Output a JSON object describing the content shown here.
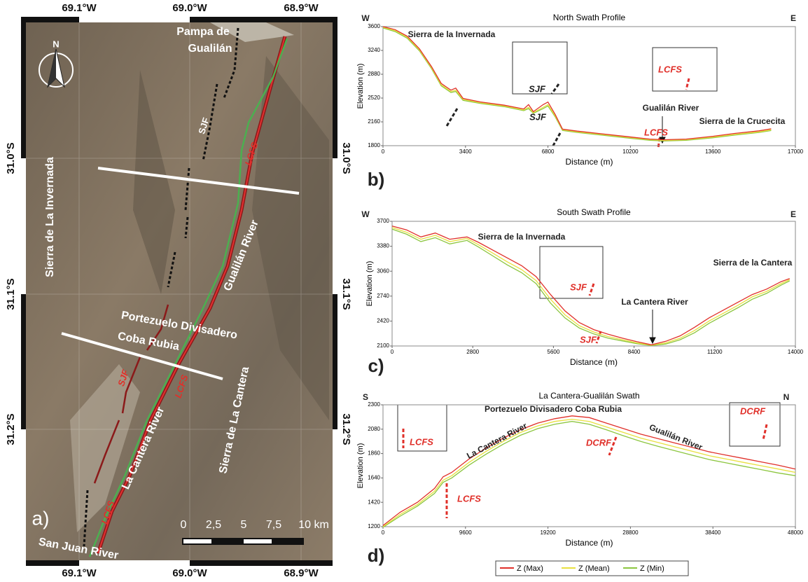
{
  "map": {
    "lon_labels": [
      "69.1°W",
      "69.0°W",
      "68.9°W"
    ],
    "lat_labels": [
      "31.0°S",
      "31.1°S",
      "31.2°S"
    ],
    "labels": [
      "Pampa de",
      "Gualilán",
      "SJF",
      "LCFS",
      "Sierra de La Invernada",
      "Gualilán River",
      "Portezuelo Divisadero",
      "Coba Rubia",
      "SJF",
      "LCFS",
      "La Cantera River",
      "Sierra de La Cantera",
      "LCFS",
      "San Juan River"
    ],
    "scale": [
      "0",
      "2,5",
      "5",
      "7,5",
      "10 km"
    ],
    "north": "N",
    "panel": "a)"
  },
  "chart_data": [
    {
      "type": "line",
      "title": "North Swath Profile",
      "x_label": "Distance (m)",
      "y_label": "Elevation (m)",
      "xlim": [
        0,
        17000
      ],
      "xticks": [
        0,
        3400,
        6800,
        10200,
        13600,
        17000
      ],
      "ylim": [
        1800,
        3600
      ],
      "yticks": [
        1800,
        2160,
        2520,
        2880,
        3240,
        3600
      ],
      "grid": false,
      "x": [
        0,
        500,
        1000,
        1500,
        2000,
        2400,
        2800,
        3000,
        3300,
        4000,
        5000,
        5800,
        6000,
        6200,
        6600,
        6800,
        7100,
        7400,
        8000,
        9000,
        10000,
        11000,
        11600,
        12500,
        13600,
        14500,
        15500,
        16000
      ],
      "series": [
        {
          "name": "Z (Max)",
          "color": "#e0302a",
          "values": [
            3600,
            3555,
            3455,
            3265,
            2995,
            2740,
            2640,
            2670,
            2515,
            2462,
            2412,
            2355,
            2420,
            2315,
            2420,
            2460,
            2270,
            2050,
            2020,
            1980,
            1940,
            1900,
            1890,
            1900,
            1942,
            1985,
            2025,
            2055
          ]
        },
        {
          "name": "Z (Mean)",
          "color": "#e8e040",
          "values": [
            3590,
            3540,
            3440,
            3250,
            2980,
            2720,
            2620,
            2640,
            2500,
            2450,
            2400,
            2340,
            2380,
            2300,
            2380,
            2420,
            2250,
            2040,
            2010,
            1970,
            1930,
            1890,
            1880,
            1890,
            1930,
            1970,
            2010,
            2040
          ]
        },
        {
          "name": "Z (Min)",
          "color": "#8cc63f",
          "values": [
            3580,
            3525,
            3425,
            3235,
            2965,
            2705,
            2605,
            2620,
            2485,
            2440,
            2390,
            2330,
            2360,
            2290,
            2360,
            2400,
            2235,
            2030,
            2000,
            1960,
            1920,
            1882,
            1872,
            1880,
            1920,
            1960,
            2000,
            2030
          ]
        }
      ],
      "annotations": [
        "W",
        "E",
        "Sierra de la Invernada",
        "SJF",
        "LCFS",
        "SJF",
        "Gualilán River",
        "LCFS",
        "Sierra de la Crucecita",
        "b)"
      ]
    },
    {
      "type": "line",
      "title": "South Swath Profile",
      "x_label": "Distance (m)",
      "y_label": "Elevation (m)",
      "xlim": [
        0,
        14000
      ],
      "xticks": [
        0,
        2800,
        5600,
        8400,
        11200,
        14000
      ],
      "ylim": [
        2100,
        3700
      ],
      "yticks": [
        2100,
        2420,
        2740,
        3060,
        3380,
        3700
      ],
      "grid": false,
      "x": [
        0,
        500,
        1000,
        1500,
        2000,
        2600,
        3000,
        3500,
        4000,
        4500,
        5000,
        5500,
        6000,
        6500,
        7000,
        7500,
        8000,
        8500,
        9000,
        9500,
        10000,
        10500,
        11000,
        11500,
        12000,
        12500,
        13000,
        13500,
        13800
      ],
      "series": [
        {
          "name": "Z (Max)",
          "color": "#e0302a",
          "values": [
            3640,
            3590,
            3500,
            3550,
            3470,
            3500,
            3430,
            3330,
            3230,
            3130,
            2990,
            2760,
            2550,
            2400,
            2310,
            2250,
            2200,
            2155,
            2115,
            2160,
            2230,
            2340,
            2460,
            2560,
            2660,
            2760,
            2830,
            2925,
            2965
          ]
        },
        {
          "name": "Z (Mean)",
          "color": "#e8e040",
          "values": [
            3620,
            3560,
            3470,
            3520,
            3440,
            3480,
            3400,
            3290,
            3180,
            3080,
            2940,
            2700,
            2500,
            2360,
            2280,
            2220,
            2180,
            2140,
            2110,
            2140,
            2200,
            2300,
            2420,
            2520,
            2620,
            2730,
            2800,
            2900,
            2950
          ]
        },
        {
          "name": "Z (Min)",
          "color": "#8cc63f",
          "values": [
            3600,
            3535,
            3440,
            3490,
            3410,
            3455,
            3370,
            3255,
            3140,
            3040,
            2900,
            2650,
            2460,
            2330,
            2255,
            2200,
            2165,
            2130,
            2105,
            2125,
            2180,
            2270,
            2390,
            2490,
            2590,
            2700,
            2775,
            2880,
            2935
          ]
        }
      ],
      "annotations": [
        "W",
        "E",
        "Sierra de la Invernada",
        "Sierra de la Cantera",
        "SJF",
        "La Cantera River",
        "SJF",
        "c)"
      ]
    },
    {
      "type": "line",
      "title": "La Cantera-Gualilán Swath",
      "x_label": "Distance (m)",
      "y_label": "Elevation (m)",
      "xlim": [
        0,
        48000
      ],
      "xticks": [
        0,
        9600,
        19200,
        28800,
        38400,
        48000
      ],
      "ylim": [
        1200,
        2300
      ],
      "yticks": [
        1200,
        1420,
        1640,
        1860,
        2080,
        2300
      ],
      "grid": false,
      "x": [
        0,
        2000,
        4000,
        6000,
        7000,
        8000,
        10000,
        12000,
        14000,
        16000,
        18000,
        20000,
        22000,
        24000,
        26000,
        28000,
        30000,
        32000,
        34000,
        36000,
        38000,
        40000,
        42000,
        44000,
        46000,
        48000
      ],
      "series": [
        {
          "name": "Z (Max)",
          "color": "#e0302a",
          "values": [
            1210,
            1330,
            1420,
            1545,
            1650,
            1690,
            1810,
            1910,
            2000,
            2075,
            2135,
            2175,
            2200,
            2185,
            2135,
            2085,
            2035,
            1995,
            1955,
            1915,
            1875,
            1845,
            1815,
            1785,
            1755,
            1720
          ]
        },
        {
          "name": "Z (Mean)",
          "color": "#e8e040",
          "values": [
            1200,
            1310,
            1400,
            1520,
            1620,
            1660,
            1780,
            1880,
            1970,
            2050,
            2110,
            2150,
            2170,
            2150,
            2100,
            2050,
            2000,
            1960,
            1920,
            1880,
            1840,
            1810,
            1780,
            1750,
            1720,
            1690
          ]
        },
        {
          "name": "Z (Min)",
          "color": "#8cc63f",
          "values": [
            1195,
            1295,
            1385,
            1500,
            1600,
            1640,
            1755,
            1855,
            1945,
            2025,
            2085,
            2125,
            2150,
            2125,
            2075,
            2020,
            1970,
            1925,
            1885,
            1845,
            1805,
            1775,
            1745,
            1715,
            1685,
            1660
          ]
        }
      ],
      "annotations": [
        "S",
        "N",
        "Portezuelo Divisadero Coba Rubia",
        "La Cantera River",
        "Gualilán River",
        "DCRF",
        "LCFS",
        "DCRF",
        "LCFS",
        "d)"
      ]
    }
  ]
}
